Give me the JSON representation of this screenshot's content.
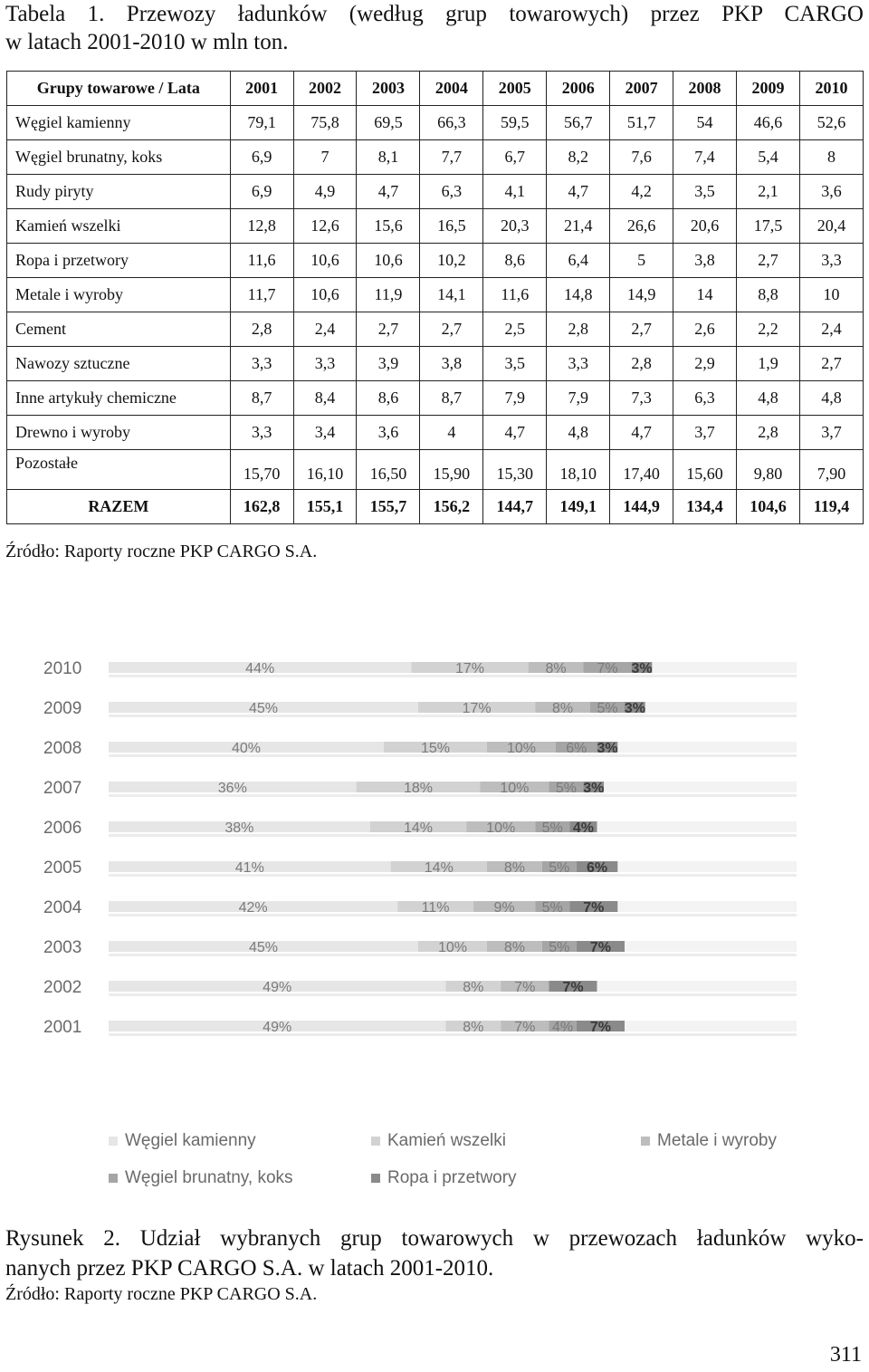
{
  "caption": {
    "line1": "Tabela 1. Przewozy ładunków (według grup towarowych) przez PKP CARGO",
    "line2": "w latach 2001-2010 w mln ton."
  },
  "table": {
    "header_label": "Grupy towarowe / Lata",
    "years": [
      "2001",
      "2002",
      "2003",
      "2004",
      "2005",
      "2006",
      "2007",
      "2008",
      "2009",
      "2010"
    ],
    "rows": [
      {
        "name": "Węgiel kamienny",
        "values": [
          "79,1",
          "75,8",
          "69,5",
          "66,3",
          "59,5",
          "56,7",
          "51,7",
          "54",
          "46,6",
          "52,6"
        ]
      },
      {
        "name": "Węgiel brunatny, koks",
        "values": [
          "6,9",
          "7",
          "8,1",
          "7,7",
          "6,7",
          "8,2",
          "7,6",
          "7,4",
          "5,4",
          "8"
        ]
      },
      {
        "name": "Rudy piryty",
        "values": [
          "6,9",
          "4,9",
          "4,7",
          "6,3",
          "4,1",
          "4,7",
          "4,2",
          "3,5",
          "2,1",
          "3,6"
        ]
      },
      {
        "name": "Kamień wszelki",
        "values": [
          "12,8",
          "12,6",
          "15,6",
          "16,5",
          "20,3",
          "21,4",
          "26,6",
          "20,6",
          "17,5",
          "20,4"
        ]
      },
      {
        "name": "Ropa i przetwory",
        "values": [
          "11,6",
          "10,6",
          "10,6",
          "10,2",
          "8,6",
          "6,4",
          "5",
          "3,8",
          "2,7",
          "3,3"
        ]
      },
      {
        "name": "Metale i wyroby",
        "values": [
          "11,7",
          "10,6",
          "11,9",
          "14,1",
          "11,6",
          "14,8",
          "14,9",
          "14",
          "8,8",
          "10"
        ]
      },
      {
        "name": "Cement",
        "values": [
          "2,8",
          "2,4",
          "2,7",
          "2,7",
          "2,5",
          "2,8",
          "2,7",
          "2,6",
          "2,2",
          "2,4"
        ]
      },
      {
        "name": "Nawozy sztuczne",
        "values": [
          "3,3",
          "3,3",
          "3,9",
          "3,8",
          "3,5",
          "3,3",
          "2,8",
          "2,9",
          "1,9",
          "2,7"
        ]
      },
      {
        "name": "Inne artykuły chemiczne",
        "values": [
          "8,7",
          "8,4",
          "8,6",
          "8,7",
          "7,9",
          "7,9",
          "7,3",
          "6,3",
          "4,8",
          "4,8"
        ]
      },
      {
        "name": "Drewno i wyroby",
        "values": [
          "3,3",
          "3,4",
          "3,6",
          "4",
          "4,7",
          "4,8",
          "4,7",
          "3,7",
          "2,8",
          "3,7"
        ]
      },
      {
        "name": "Pozostałe",
        "values": [
          "15,70",
          "16,10",
          "16,50",
          "15,90",
          "15,30",
          "18,10",
          "17,40",
          "15,60",
          "9,80",
          "7,90"
        ]
      }
    ],
    "total": {
      "name": "RAZEM",
      "values": [
        "162,8",
        "155,1",
        "155,7",
        "156,2",
        "144,7",
        "149,1",
        "144,9",
        "134,4",
        "104,6",
        "119,4"
      ]
    }
  },
  "source1": "Źródło: Raporty roczne PKP CARGO S.A.",
  "chart_data": {
    "type": "bar",
    "orientation": "horizontal",
    "categories": [
      "2010",
      "2009",
      "2008",
      "2007",
      "2006",
      "2005",
      "2004",
      "2003",
      "2002",
      "2001"
    ],
    "series": [
      {
        "name": "Węgiel kamienny",
        "values": [
          44,
          45,
          40,
          36,
          38,
          41,
          42,
          45,
          49,
          49
        ],
        "color": "#e6e6e6"
      },
      {
        "name": "Kamień wszelki",
        "values": [
          17,
          17,
          15,
          18,
          14,
          14,
          11,
          10,
          8,
          8
        ],
        "color": "#d2d2d2"
      },
      {
        "name": "Metale i wyroby",
        "values": [
          8,
          8,
          10,
          10,
          10,
          8,
          9,
          8,
          7,
          7
        ],
        "color": "#bdbdbd"
      },
      {
        "name": "Węgiel brunatny, koks",
        "values": [
          7,
          5,
          6,
          5,
          5,
          5,
          5,
          5,
          null,
          4
        ],
        "color": "#a5a5a5"
      },
      {
        "name": "Ropa i przetwory",
        "values": [
          3,
          3,
          3,
          3,
          4,
          6,
          7,
          7,
          7,
          7
        ],
        "color": "#8a8a8a"
      }
    ],
    "labels": [
      [
        "44%",
        "17%",
        "8%",
        "7%",
        "3%"
      ],
      [
        "45%",
        "17%",
        "8%",
        "5%",
        "3%"
      ],
      [
        "40%",
        "15%",
        "10%",
        "6%",
        "3%"
      ],
      [
        "36%",
        "18%",
        "10%",
        "5%",
        "3%"
      ],
      [
        "38%",
        "14%",
        "10%",
        "5%",
        "4%"
      ],
      [
        "41%",
        "14%",
        "8%",
        "5%",
        "6%"
      ],
      [
        "42%",
        "11%",
        "9%",
        "5%",
        "7%"
      ],
      [
        "45%",
        "10%",
        "8%",
        "5%",
        "7%"
      ],
      [
        "49%",
        "8%",
        "7%",
        "",
        "7%"
      ],
      [
        "49%",
        "8%",
        "7%",
        "4%",
        "7%"
      ]
    ],
    "legend": {
      "placement": "bottom",
      "items": [
        "Węgiel kamienny",
        "Kamień wszelki",
        "Metale i wyroby",
        "Węgiel brunatny, koks",
        "Ropa i przetwory"
      ]
    }
  },
  "figure_caption": {
    "line1": "Rysunek 2. Udział wybranych grup towarowych w przewozach ładunków wyko-",
    "line2": "nanych przez PKP CARGO S.A. w latach 2001-2010."
  },
  "source2": "Źródło: Raporty roczne PKP CARGO S.A.",
  "page_number": "311"
}
